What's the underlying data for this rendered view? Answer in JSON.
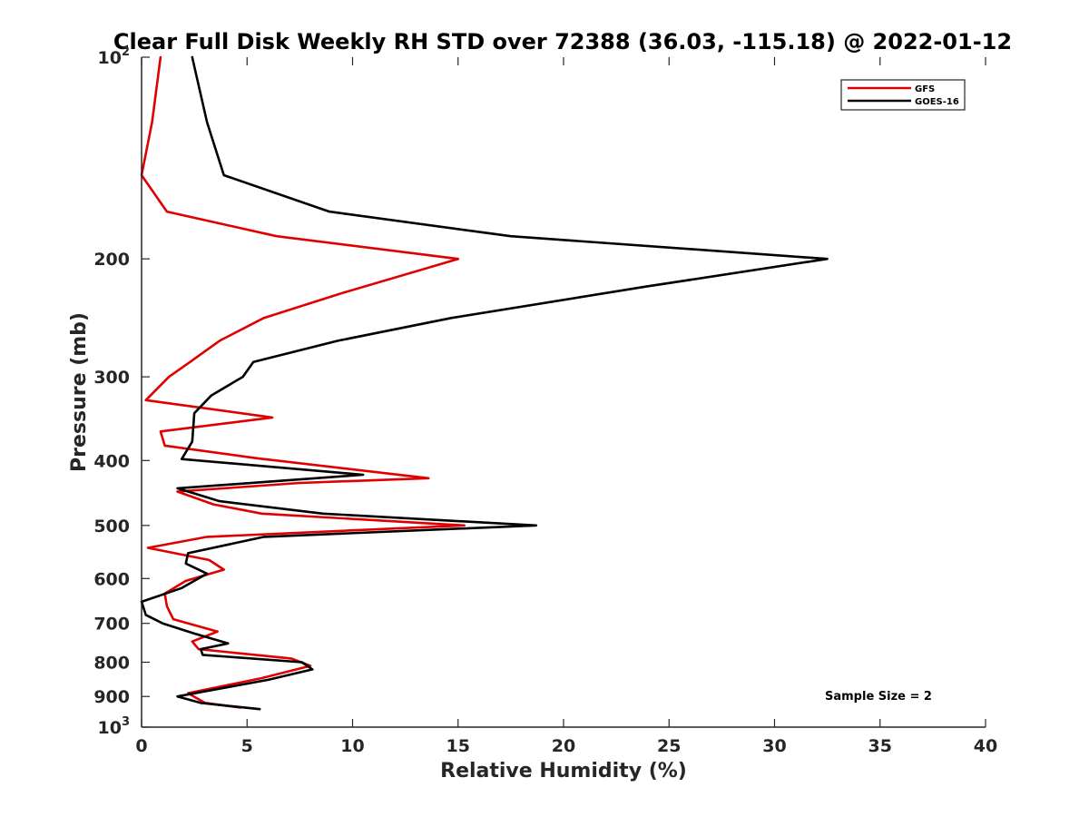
{
  "chart_data": {
    "type": "line",
    "title": "Clear Full Disk Weekly RH STD over 72388 (36.03, -115.18) @ 2022-01-12",
    "xlabel": "Relative Humidity (%)",
    "ylabel": "Pressure (mb)",
    "xlim": [
      0,
      40
    ],
    "ylim": [
      100,
      1000
    ],
    "y_scale": "log",
    "y_reversed": true,
    "xticks": [
      0,
      5,
      10,
      15,
      20,
      25,
      30,
      35,
      40
    ],
    "yticks": [
      {
        "value": 100,
        "base": "10",
        "exp": "2"
      },
      {
        "value": 200,
        "label": "200"
      },
      {
        "value": 300,
        "label": "300"
      },
      {
        "value": 400,
        "label": "400"
      },
      {
        "value": 500,
        "label": "500"
      },
      {
        "value": 600,
        "label": "600"
      },
      {
        "value": 700,
        "label": "700"
      },
      {
        "value": 800,
        "label": "800"
      },
      {
        "value": 900,
        "label": "900"
      },
      {
        "value": 1000,
        "base": "10",
        "exp": "3"
      }
    ],
    "grid": false,
    "legend_position": "top-right",
    "series": [
      {
        "name": "GFS",
        "color": "#e00000",
        "points": [
          [
            0.9,
            100
          ],
          [
            0.5,
            125
          ],
          [
            0,
            150
          ],
          [
            1.2,
            170
          ],
          [
            6.4,
            185
          ],
          [
            15.0,
            200
          ],
          [
            9.5,
            225
          ],
          [
            5.8,
            245
          ],
          [
            3.7,
            265
          ],
          [
            2.3,
            285
          ],
          [
            1.3,
            300
          ],
          [
            0.2,
            325
          ],
          [
            6.2,
            345
          ],
          [
            0.9,
            362
          ],
          [
            1.1,
            380
          ],
          [
            5.5,
            397
          ],
          [
            13.6,
            425
          ],
          [
            7.5,
            432
          ],
          [
            1.7,
            445
          ],
          [
            3.4,
            465
          ],
          [
            5.7,
            480
          ],
          [
            15.3,
            500
          ],
          [
            3.1,
            520
          ],
          [
            0.3,
            540
          ],
          [
            3.2,
            563
          ],
          [
            3.9,
            582
          ],
          [
            2.1,
            605
          ],
          [
            1.1,
            632
          ],
          [
            1.2,
            660
          ],
          [
            1.5,
            690
          ],
          [
            3.6,
            720
          ],
          [
            2.4,
            745
          ],
          [
            2.7,
            765
          ],
          [
            7.1,
            790
          ],
          [
            8.0,
            810
          ],
          [
            5.7,
            845
          ],
          [
            2.2,
            890
          ],
          [
            3.0,
            920
          ],
          [
            4.7,
            935
          ]
        ]
      },
      {
        "name": "GOES-16",
        "color": "#000000",
        "points": [
          [
            2.4,
            100
          ],
          [
            3.1,
            125
          ],
          [
            3.9,
            150
          ],
          [
            8.9,
            170
          ],
          [
            17.5,
            185
          ],
          [
            32.5,
            200
          ],
          [
            23.9,
            220
          ],
          [
            14.7,
            245
          ],
          [
            9.3,
            265
          ],
          [
            5.3,
            285
          ],
          [
            4.8,
            300
          ],
          [
            3.3,
            320
          ],
          [
            2.5,
            340
          ],
          [
            2.4,
            375
          ],
          [
            1.9,
            398
          ],
          [
            10.5,
            420
          ],
          [
            1.7,
            440
          ],
          [
            3.7,
            460
          ],
          [
            8.6,
            480
          ],
          [
            18.7,
            500
          ],
          [
            5.8,
            520
          ],
          [
            2.2,
            550
          ],
          [
            2.1,
            570
          ],
          [
            3.1,
            590
          ],
          [
            1.9,
            620
          ],
          [
            0,
            650
          ],
          [
            0.2,
            680
          ],
          [
            1.0,
            700
          ],
          [
            2.5,
            725
          ],
          [
            4.1,
            750
          ],
          [
            2.8,
            765
          ],
          [
            2.9,
            780
          ],
          [
            7.6,
            800
          ],
          [
            8.1,
            820
          ],
          [
            6.0,
            850
          ],
          [
            3.8,
            875
          ],
          [
            1.7,
            900
          ],
          [
            2.8,
            920
          ],
          [
            5.6,
            940
          ]
        ]
      }
    ],
    "annotation": "Sample Size = 2"
  }
}
